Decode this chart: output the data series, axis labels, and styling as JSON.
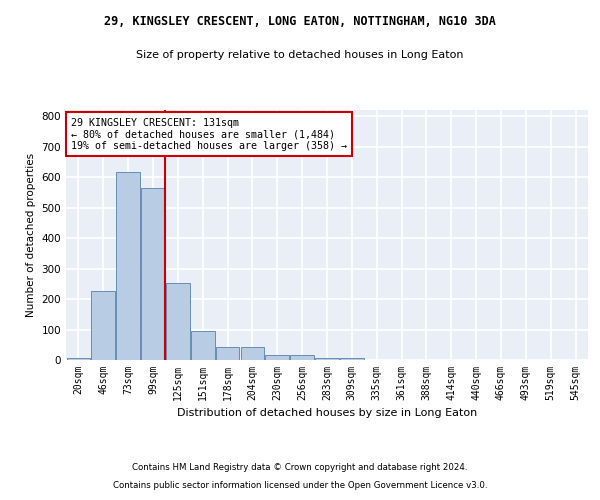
{
  "title1": "29, KINGSLEY CRESCENT, LONG EATON, NOTTINGHAM, NG10 3DA",
  "title2": "Size of property relative to detached houses in Long Eaton",
  "xlabel": "Distribution of detached houses by size in Long Eaton",
  "ylabel": "Number of detached properties",
  "bins": [
    "20sqm",
    "46sqm",
    "73sqm",
    "99sqm",
    "125sqm",
    "151sqm",
    "178sqm",
    "204sqm",
    "230sqm",
    "256sqm",
    "283sqm",
    "309sqm",
    "335sqm",
    "361sqm",
    "388sqm",
    "414sqm",
    "440sqm",
    "466sqm",
    "493sqm",
    "519sqm",
    "545sqm"
  ],
  "values": [
    8,
    225,
    618,
    565,
    252,
    95,
    42,
    42,
    17,
    17,
    8,
    5,
    0,
    0,
    0,
    0,
    0,
    0,
    0,
    0,
    0
  ],
  "bar_color": "#b8cce4",
  "bar_edge_color": "#5580b0",
  "red_line_bin_index": 4,
  "annotation_text": "29 KINGSLEY CRESCENT: 131sqm\n← 80% of detached houses are smaller (1,484)\n19% of semi-detached houses are larger (358) →",
  "annotation_box_color": "#ffffff",
  "annotation_box_edge": "#cc0000",
  "ylim": [
    0,
    820
  ],
  "yticks": [
    0,
    100,
    200,
    300,
    400,
    500,
    600,
    700,
    800
  ],
  "bg_color": "#eaeff7",
  "grid_color": "#ffffff",
  "footer1": "Contains HM Land Registry data © Crown copyright and database right 2024.",
  "footer2": "Contains public sector information licensed under the Open Government Licence v3.0."
}
